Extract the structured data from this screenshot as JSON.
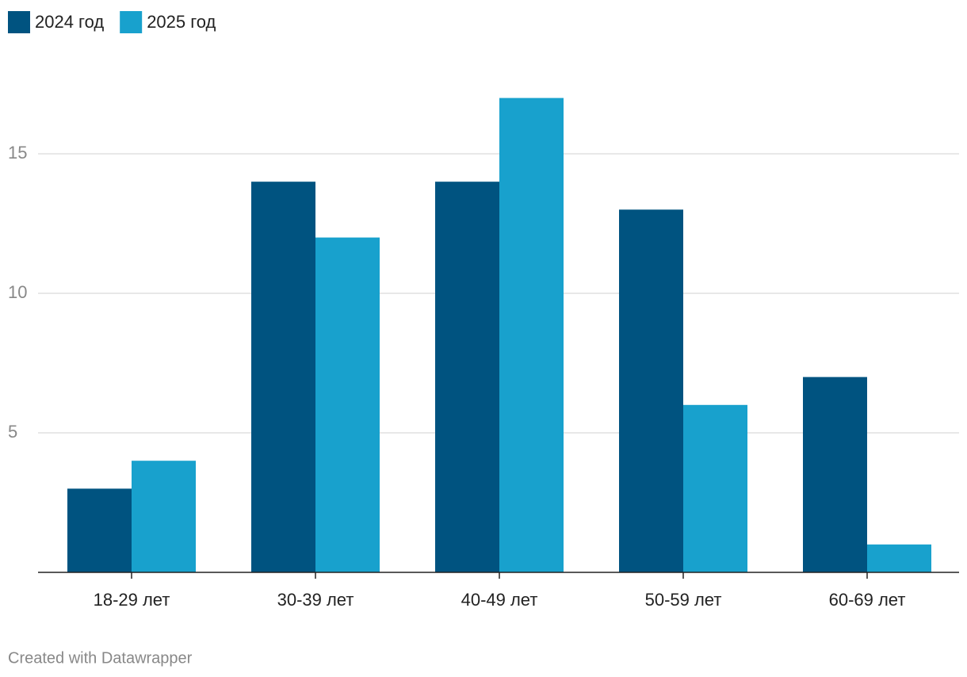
{
  "chart_data": {
    "type": "bar",
    "categories": [
      "18-29 лет",
      "30-39 лет",
      "40-49 лет",
      "50-59 лет",
      "60-69 лет"
    ],
    "series": [
      {
        "name": "2024 год",
        "color": "#005380",
        "values": [
          3,
          14,
          14,
          13,
          7
        ]
      },
      {
        "name": "2025 год",
        "color": "#18a1cd",
        "values": [
          4,
          12,
          17,
          6,
          1
        ]
      }
    ],
    "ylim": [
      0,
      18
    ],
    "yticks": [
      5,
      10,
      15
    ],
    "grid": true,
    "legend": "top-left",
    "footer": "Created with Datawrapper"
  }
}
